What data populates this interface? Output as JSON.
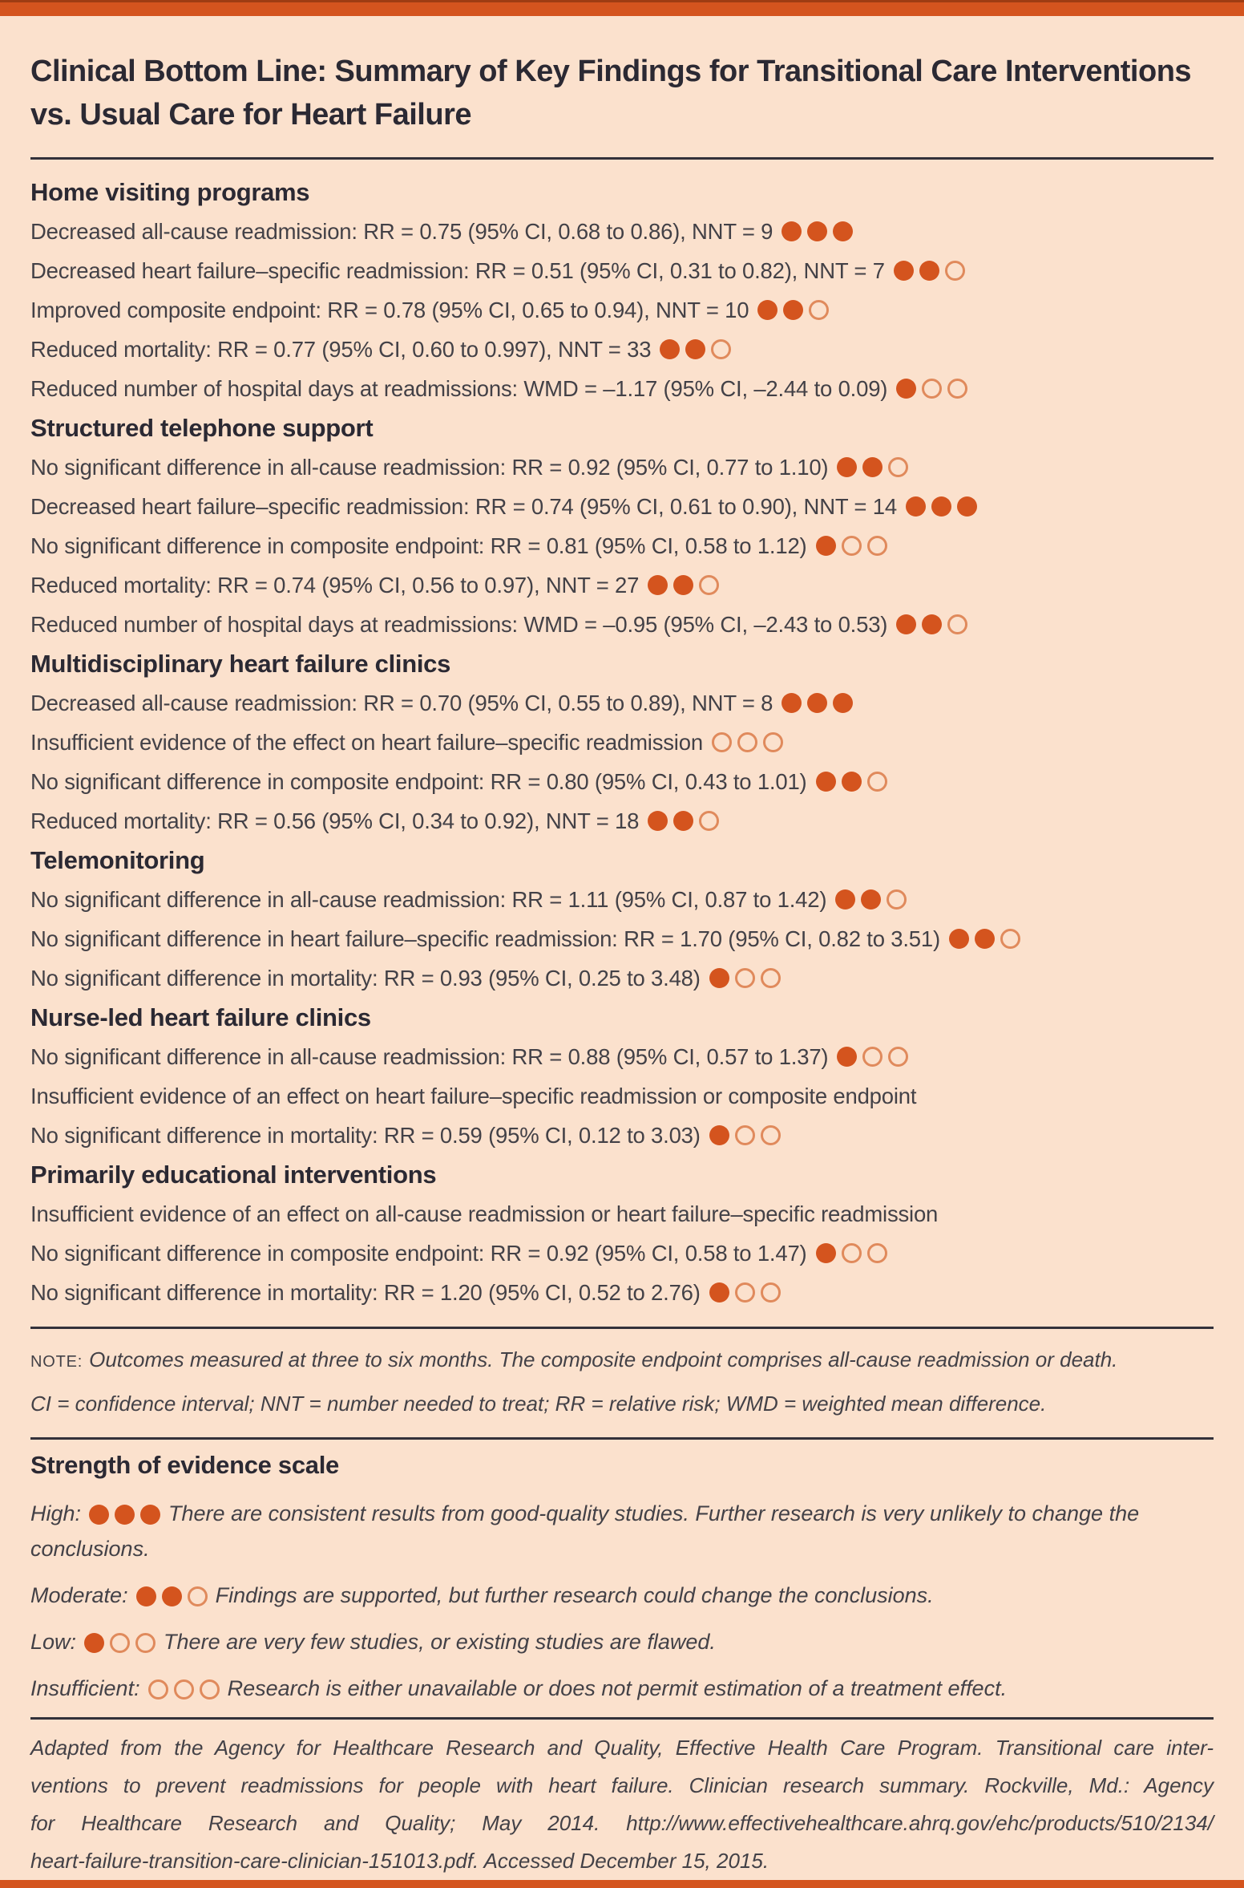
{
  "title": "Clinical Bottom Line: Summary of Key Findings for Transitional Care Interventions vs. Usual Care for Heart Failure",
  "colors": {
    "accent": "#d4541e",
    "dot_open": "#e08a5c",
    "background": "#fbe1cd",
    "heading_text": "#2b2933",
    "body_text": "#434147"
  },
  "sections": [
    {
      "heading": "Home visiting programs",
      "items": [
        {
          "text": "Decreased all-cause readmission: RR = 0.75 (95% CI, 0.68 to 0.86), NNT = 9",
          "rating": 3
        },
        {
          "text": "Decreased heart failure–specific readmission: RR = 0.51 (95% CI, 0.31 to 0.82), NNT = 7",
          "rating": 2
        },
        {
          "text": "Improved composite endpoint: RR = 0.78 (95% CI, 0.65 to 0.94), NNT = 10",
          "rating": 2
        },
        {
          "text": "Reduced mortality: RR = 0.77 (95% CI, 0.60 to 0.997), NNT = 33",
          "rating": 2
        },
        {
          "text": "Reduced number of hospital days at readmissions: WMD = –1.17 (95% CI, –2.44 to 0.09)",
          "rating": 1
        }
      ]
    },
    {
      "heading": "Structured telephone support",
      "items": [
        {
          "text": "No significant difference in all-cause readmission: RR = 0.92 (95% CI, 0.77 to 1.10)",
          "rating": 2
        },
        {
          "text": "Decreased heart failure–specific readmission: RR = 0.74 (95% CI, 0.61 to 0.90), NNT = 14",
          "rating": 3
        },
        {
          "text": "No significant difference in composite endpoint: RR = 0.81 (95% CI, 0.58 to 1.12)",
          "rating": 1
        },
        {
          "text": "Reduced mortality: RR = 0.74 (95% CI, 0.56 to 0.97), NNT = 27",
          "rating": 2
        },
        {
          "text": "Reduced number of hospital days at readmissions: WMD = –0.95 (95% CI, –2.43 to 0.53)",
          "rating": 2
        }
      ]
    },
    {
      "heading": "Multidisciplinary heart failure clinics",
      "items": [
        {
          "text": "Decreased all-cause readmission: RR = 0.70 (95% CI, 0.55 to 0.89), NNT = 8",
          "rating": 3
        },
        {
          "text": "Insufficient evidence of the effect on heart failure–specific readmission",
          "rating": 0
        },
        {
          "text": "No significant difference in composite endpoint: RR = 0.80 (95% CI, 0.43 to 1.01)",
          "rating": 2
        },
        {
          "text": "Reduced mortality: RR = 0.56 (95% CI, 0.34 to 0.92), NNT = 18",
          "rating": 2
        }
      ]
    },
    {
      "heading": "Telemonitoring",
      "items": [
        {
          "text": "No significant difference in all-cause readmission: RR = 1.11 (95% CI, 0.87 to 1.42)",
          "rating": 2
        },
        {
          "text": "No significant difference in heart failure–specific readmission: RR = 1.70 (95% CI, 0.82 to 3.51)",
          "rating": 2
        },
        {
          "text": "No significant difference in mortality: RR = 0.93 (95% CI, 0.25 to 3.48)",
          "rating": 1
        }
      ]
    },
    {
      "heading": "Nurse-led heart failure clinics",
      "items": [
        {
          "text": "No significant difference in all-cause readmission: RR = 0.88 (95% CI, 0.57 to 1.37)",
          "rating": 1
        },
        {
          "text": "Insufficient evidence of an effect on heart failure–specific readmission or composite endpoint",
          "rating": null
        },
        {
          "text": "No significant difference in mortality: RR = 0.59 (95% CI, 0.12 to 3.03)",
          "rating": 1
        }
      ]
    },
    {
      "heading": "Primarily educational interventions",
      "items": [
        {
          "text": "Insufficient evidence of an effect on all-cause readmission or heart failure–specific readmission",
          "rating": null
        },
        {
          "text": "No significant difference in composite endpoint: RR = 0.92 (95% CI, 0.58 to 1.47)",
          "rating": 1
        },
        {
          "text": "No significant difference in mortality: RR = 1.20 (95% CI, 0.52 to 2.76)",
          "rating": 1
        }
      ]
    }
  ],
  "notes": [
    {
      "label": "NOTE:",
      "text": "Outcomes measured at three to six months. The composite endpoint comprises all-cause readmission or death."
    },
    {
      "label": "",
      "text": "CI = confidence interval; NNT = number needed to treat; RR = relative risk; WMD = weighted mean difference."
    }
  ],
  "evidence_scale": {
    "heading": "Strength of evidence scale",
    "levels": [
      {
        "label": "High:",
        "rating": 3,
        "text": "There are consistent results from good-quality studies. Further research is very unlikely to change the conclusions."
      },
      {
        "label": "Moderate:",
        "rating": 2,
        "text": "Findings are supported, but further research could change the conclusions."
      },
      {
        "label": "Low:",
        "rating": 1,
        "text": "There are very few studies, or existing studies are flawed."
      },
      {
        "label": "Insufficient:",
        "rating": 0,
        "text": "Research is either unavailable or does not permit estimation of a treatment effect."
      }
    ]
  },
  "source": {
    "lines": [
      "Adapted from the Agency for Healthcare Research and Quality, Effective Health Care Program. Transitional care inter-",
      "ventions to prevent readmissions for people with heart failure. Clinician research summary. Rockville, Md.: Agency",
      "for Healthcare Research and Quality; May 2014. http://www.effectivehealthcare.ahrq.gov/ehc/products/510/2134/",
      "heart-failure-transition-care-clinician-151013.pdf. Accessed December 15, 2015."
    ]
  }
}
